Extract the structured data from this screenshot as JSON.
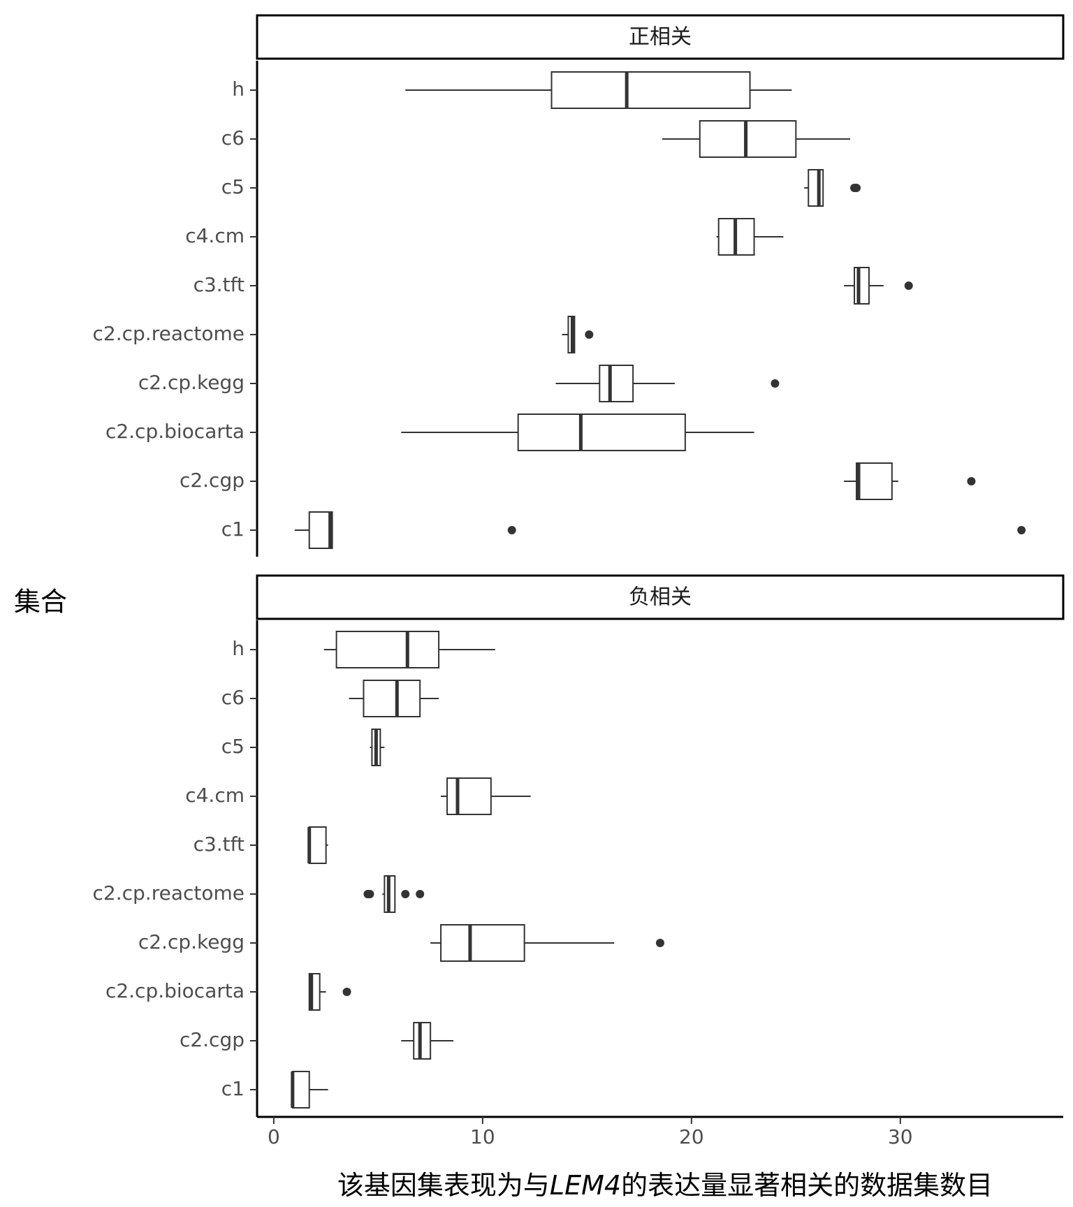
{
  "chart_data": {
    "type": "boxplot",
    "orientation": "horizontal",
    "facets": [
      "正相关",
      "负相关"
    ],
    "categories": [
      "h",
      "c6",
      "c5",
      "c4.cm",
      "c3.tft",
      "c2.cp.reactome",
      "c2.cp.kegg",
      "c2.cp.biocarta",
      "c2.cgp",
      "c1"
    ],
    "ylabel": "集合",
    "xlabel_parts": {
      "before": "该基因集表现为与",
      "gene": "LEM4",
      "after": "的表达量显著相关的数据集数目"
    },
    "xlim": [
      -0.8,
      37.8
    ],
    "xticks": [
      "0",
      "10",
      "20",
      "30"
    ],
    "grid": false,
    "series": [
      {
        "facet": "正相关",
        "boxes": [
          {
            "category": "h",
            "whisker_low": 6.3,
            "q1": 13.3,
            "median": 16.9,
            "q3": 22.8,
            "whisker_high": 24.8,
            "outliers": []
          },
          {
            "category": "c6",
            "whisker_low": 18.6,
            "q1": 20.4,
            "median": 22.6,
            "q3": 25.0,
            "whisker_high": 27.6,
            "outliers": []
          },
          {
            "category": "c5",
            "whisker_low": 25.4,
            "q1": 25.6,
            "median": 26.1,
            "q3": 26.3,
            "whisker_high": 26.3,
            "outliers": [
              27.8,
              27.9
            ]
          },
          {
            "category": "c4.cm",
            "whisker_low": 21.2,
            "q1": 21.3,
            "median": 22.1,
            "q3": 23.0,
            "whisker_high": 24.4,
            "outliers": []
          },
          {
            "category": "c3.tft",
            "whisker_low": 27.3,
            "q1": 27.8,
            "median": 28.0,
            "q3": 28.5,
            "whisker_high": 29.2,
            "outliers": [
              30.4
            ]
          },
          {
            "category": "c2.cp.reactome",
            "whisker_low": 13.8,
            "q1": 14.1,
            "median": 14.3,
            "q3": 14.4,
            "whisker_high": 14.4,
            "outliers": [
              15.1
            ]
          },
          {
            "category": "c2.cp.kegg",
            "whisker_low": 13.5,
            "q1": 15.6,
            "median": 16.1,
            "q3": 17.2,
            "whisker_high": 19.2,
            "outliers": [
              24.0
            ]
          },
          {
            "category": "c2.cp.biocarta",
            "whisker_low": 6.1,
            "q1": 11.7,
            "median": 14.7,
            "q3": 19.7,
            "whisker_high": 23.0,
            "outliers": []
          },
          {
            "category": "c2.cgp",
            "whisker_low": 27.3,
            "q1": 27.9,
            "median": 28.0,
            "q3": 29.6,
            "whisker_high": 29.9,
            "outliers": [
              33.4
            ]
          },
          {
            "category": "c1",
            "whisker_low": 1.0,
            "q1": 1.7,
            "median": 2.7,
            "q3": 2.8,
            "whisker_high": 2.8,
            "outliers": [
              11.4,
              35.8
            ]
          }
        ]
      },
      {
        "facet": "负相关",
        "boxes": [
          {
            "category": "h",
            "whisker_low": 2.4,
            "q1": 3.0,
            "median": 6.4,
            "q3": 7.9,
            "whisker_high": 10.6,
            "outliers": []
          },
          {
            "category": "c6",
            "whisker_low": 3.6,
            "q1": 4.3,
            "median": 5.9,
            "q3": 7.0,
            "whisker_high": 7.9,
            "outliers": []
          },
          {
            "category": "c5",
            "whisker_low": 4.6,
            "q1": 4.7,
            "median": 4.9,
            "q3": 5.1,
            "whisker_high": 5.3,
            "outliers": []
          },
          {
            "category": "c4.cm",
            "whisker_low": 8.0,
            "q1": 8.3,
            "median": 8.8,
            "q3": 10.4,
            "whisker_high": 12.3,
            "outliers": []
          },
          {
            "category": "c3.tft",
            "whisker_low": 1.7,
            "q1": 1.7,
            "median": 1.7,
            "q3": 2.5,
            "whisker_high": 2.6,
            "outliers": []
          },
          {
            "category": "c2.cp.reactome",
            "whisker_low": 5.2,
            "q1": 5.3,
            "median": 5.5,
            "q3": 5.8,
            "whisker_high": 5.8,
            "outliers": [
              4.5,
              4.6,
              6.3,
              7.0
            ]
          },
          {
            "category": "c2.cp.kegg",
            "whisker_low": 7.5,
            "q1": 8.0,
            "median": 9.4,
            "q3": 12.0,
            "whisker_high": 16.3,
            "outliers": [
              18.5
            ]
          },
          {
            "category": "c2.cp.biocarta",
            "whisker_low": 1.7,
            "q1": 1.7,
            "median": 1.8,
            "q3": 2.2,
            "whisker_high": 2.5,
            "outliers": [
              3.5
            ]
          },
          {
            "category": "c2.cgp",
            "whisker_low": 6.1,
            "q1": 6.7,
            "median": 7.0,
            "q3": 7.5,
            "whisker_high": 8.6,
            "outliers": []
          },
          {
            "category": "c1",
            "whisker_low": 0.9,
            "q1": 0.9,
            "median": 0.9,
            "q3": 1.7,
            "whisker_high": 2.6,
            "outliers": []
          }
        ]
      }
    ]
  }
}
